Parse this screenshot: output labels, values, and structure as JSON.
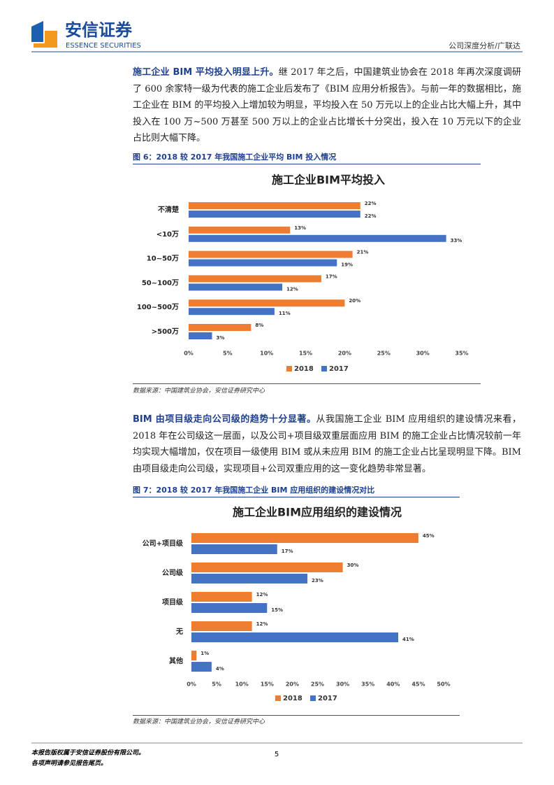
{
  "header": {
    "logo_cn": "安信证券",
    "logo_en": "ESSENCE SECURITIES",
    "report": "公司深度分析/广联达"
  },
  "paragraphs": [
    {
      "bold": "施工企业 BIM 平均投入明显上升。",
      "text": "继 2017 年之后，中国建筑业协会在 2018 年再次深度调研了 600 余家特一级为代表的施工企业后发布了《BIM 应用分析报告》。与前一年的数据相比，施工企业在 BIM 的平均投入上增加较为明显，平均投入在 50 万元以上的企业占比大幅上升，其中投入在 100 万~500 万甚至 500 万以上的企业占比增长十分突出，投入在 10 万元以下的企业占比则大幅下降。"
    },
    {
      "bold": "BIM 由项目级走向公司级的趋势十分显著。",
      "text": "从我国施工企业 BIM 应用组织的建设情况来看，2018 年在公司级这一层面，以及公司+项目级双重层面应用 BIM 的施工企业占比情况较前一年均实现大幅增加，仅在项目一级使用 BIM 或从未应用 BIM 的施工企业占比呈现明显下降。BIM 由项目级走向公司级，实现项目+公司双重应用的这一变化趋势非常显著。"
    }
  ],
  "figures": [
    {
      "caption": "图 6：2018 较 2017 年我国施工企业平均 BIM 投入情况",
      "source": "数据来源：中国建筑业协会，安信证券研究中心"
    },
    {
      "caption": "图 7：2018 较 2017 年我国施工企业 BIM 应用组织的建设情况对比",
      "source": "数据来源：中国建筑业协会，安信证券研究中心"
    }
  ],
  "chart_data": [
    {
      "type": "bar",
      "orientation": "horizontal",
      "title": "施工企业BIM平均投入",
      "categories": [
        "不清楚",
        "<10万",
        "10~50万",
        "50~100万",
        "100~500万",
        ">500万"
      ],
      "series": [
        {
          "name": "2018",
          "color": "#ED7D31",
          "values": [
            22,
            13,
            21,
            17,
            20,
            8
          ],
          "value_labels": [
            "22%",
            "13%",
            "21%",
            "17%",
            "20%",
            "8%"
          ]
        },
        {
          "name": "2017",
          "color": "#4472C4",
          "values": [
            22,
            33,
            19,
            12,
            11,
            3
          ],
          "value_labels": [
            "22%",
            "33%",
            "19%",
            "12%",
            "11%",
            "3%"
          ]
        }
      ],
      "xlim": [
        0,
        35
      ],
      "xticks": [
        {
          "value": 0,
          "label": "0%"
        },
        {
          "value": 5,
          "label": "5%"
        },
        {
          "value": 10,
          "label": "10%"
        },
        {
          "value": 15,
          "label": "15%"
        },
        {
          "value": 20,
          "label": "20%"
        },
        {
          "value": 25,
          "label": "25%"
        },
        {
          "value": 30,
          "label": "30%"
        },
        {
          "value": 35,
          "label": "35%"
        }
      ],
      "legend": "bottom"
    },
    {
      "type": "bar",
      "orientation": "horizontal",
      "title": "施工企业BIM应用组织的建设情况",
      "categories": [
        "公司+项目级",
        "公司级",
        "项目级",
        "无",
        "其他"
      ],
      "series": [
        {
          "name": "2018",
          "color": "#ED7D31",
          "values": [
            45,
            30,
            12,
            12,
            1
          ],
          "value_labels": [
            "45%",
            "30%",
            "12%",
            "12%",
            "1%"
          ]
        },
        {
          "name": "2017",
          "color": "#4472C4",
          "values": [
            17,
            23,
            15,
            41,
            4
          ],
          "value_labels": [
            "17%",
            "23%",
            "15%",
            "41%",
            "4%"
          ]
        }
      ],
      "xlim": [
        0,
        50
      ],
      "xticks": [
        {
          "value": 0,
          "label": "0%"
        },
        {
          "value": 5,
          "label": "5%"
        },
        {
          "value": 10,
          "label": "10%"
        },
        {
          "value": 15,
          "label": "15%"
        },
        {
          "value": 20,
          "label": "20%"
        },
        {
          "value": 25,
          "label": "25%"
        },
        {
          "value": 30,
          "label": "30%"
        },
        {
          "value": 35,
          "label": "35%"
        },
        {
          "value": 40,
          "label": "40%"
        },
        {
          "value": 45,
          "label": "45%"
        },
        {
          "value": 50,
          "label": "50%"
        }
      ],
      "legend": "bottom"
    }
  ],
  "footer": {
    "line1": "本报告版权属于安信证券股份有限公司。",
    "line2": "各项声明请参见报告尾页。",
    "page": "5"
  }
}
